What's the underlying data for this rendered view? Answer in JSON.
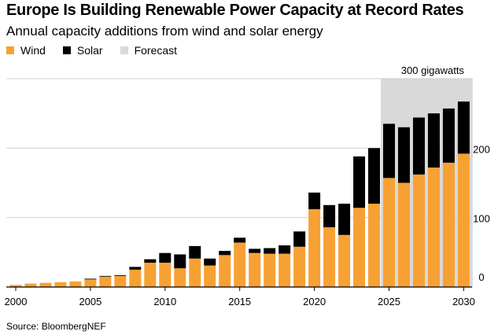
{
  "chart_data": {
    "type": "bar",
    "stacked": true,
    "title": "Europe Is Building Renewable Power Capacity at Record Rates",
    "subtitle": "Annual capacity additions from wind and solar energy",
    "ylabel": "",
    "xlabel": "",
    "ylim": [
      0,
      300
    ],
    "yticks": [
      0,
      100,
      200
    ],
    "ytick_labels": [
      "0",
      "100",
      "200"
    ],
    "y_top_label": "300 gigawatts",
    "xticks": [
      2000,
      2005,
      2010,
      2015,
      2020,
      2025,
      2030
    ],
    "xtick_labels": [
      "2000",
      "2005",
      "2010",
      "2015",
      "2020",
      "2025",
      "2030"
    ],
    "categories": [
      2000,
      2001,
      2002,
      2003,
      2004,
      2005,
      2006,
      2007,
      2008,
      2009,
      2010,
      2011,
      2012,
      2013,
      2014,
      2015,
      2016,
      2017,
      2018,
      2019,
      2020,
      2021,
      2022,
      2023,
      2024,
      2025,
      2026,
      2027,
      2028,
      2029,
      2030
    ],
    "series": [
      {
        "name": "Wind",
        "color": "#f7a134",
        "values": [
          3,
          5,
          6,
          7,
          8,
          11,
          15,
          16,
          25,
          35,
          35,
          27,
          41,
          31,
          46,
          64,
          49,
          48,
          48,
          58,
          112,
          86,
          75,
          114,
          120,
          157,
          150,
          162,
          172,
          179,
          192
        ]
      },
      {
        "name": "Solar",
        "color": "#000000",
        "values": [
          0,
          0,
          0,
          0,
          0,
          1,
          1,
          1,
          4,
          5,
          14,
          20,
          18,
          10,
          6,
          7,
          6,
          8,
          12,
          22,
          24,
          32,
          45,
          74,
          80,
          78,
          80,
          82,
          78,
          78,
          75
        ]
      }
    ],
    "forecast": {
      "name": "Forecast",
      "color": "#d9d9d9",
      "start_year": 2025,
      "end_year": 2030
    },
    "source": "Source: BloombergNEF"
  },
  "legend": [
    {
      "label": "Wind",
      "color": "#f7a134"
    },
    {
      "label": "Solar",
      "color": "#000000"
    },
    {
      "label": "Forecast",
      "color": "#d9d9d9"
    }
  ]
}
